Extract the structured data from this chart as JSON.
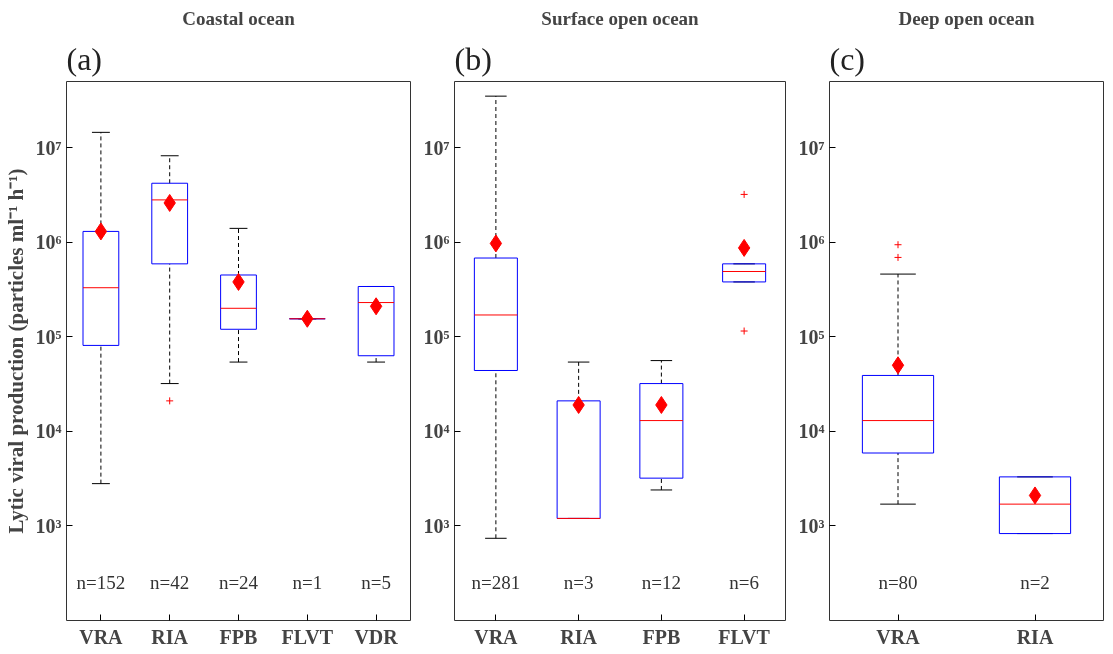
{
  "chart_data": [
    {
      "type": "box",
      "title": "Coastal ocean",
      "ylabel": "Lytic viral production (particles ml⁻¹ h⁻¹)",
      "categories": [
        "VRA",
        "RIA",
        "FPB",
        "FLVT",
        "VDR"
      ],
      "log": true,
      "grid": false,
      "ylim": [
        100,
        50000000
      ],
      "yticks": [
        {
          "value": 1000,
          "label": "10³"
        },
        {
          "value": 10000,
          "label": "10⁴"
        },
        {
          "value": 100000,
          "label": "10⁵"
        },
        {
          "value": 1000000,
          "label": "10⁶"
        },
        {
          "value": 10000000,
          "label": "10⁷"
        }
      ],
      "series": [
        {
          "color": "#0000ff",
          "boxes": [
            {
              "low": 2800,
              "q1": 81000,
              "median": 330000,
              "q3": 1300000,
              "high": 14500000
            },
            {
              "low": 32000,
              "q1": 590000,
              "median": 2800000,
              "q3": 4200000,
              "high": 8200000,
              "outliers": [
                21000
              ]
            },
            {
              "low": 54000,
              "q1": 120000,
              "median": 200000,
              "q3": 450000,
              "high": 1400000
            },
            {
              "low": 155000,
              "q1": 155000,
              "median": 155000,
              "q3": 155000,
              "high": 155000
            },
            {
              "low": 54000,
              "q1": 63000,
              "median": 230000,
              "q3": 340000,
              "high": 340000
            }
          ]
        },
        {
          "type": "scatter",
          "marker": "diamond",
          "color": "#ff0000",
          "x": [
            "VRA",
            "RIA",
            "FPB",
            "FLVT",
            "VDR"
          ],
          "values": [
            1300000,
            2600000,
            380000,
            155000,
            210000
          ]
        }
      ],
      "annotations": [
        "(a)",
        "n=152",
        "n=42",
        "n=24",
        "n=1",
        "n=5"
      ]
    },
    {
      "type": "box",
      "title": "Surface open ocean",
      "categories": [
        "VRA",
        "RIA",
        "FPB",
        "FLVT"
      ],
      "log": true,
      "grid": false,
      "ylim": [
        100,
        50000000
      ],
      "yticks": [
        {
          "value": 1000,
          "label": "10³"
        },
        {
          "value": 10000,
          "label": "10⁴"
        },
        {
          "value": 100000,
          "label": "10⁵"
        },
        {
          "value": 1000000,
          "label": "10⁶"
        },
        {
          "value": 10000000,
          "label": "10⁷"
        }
      ],
      "series": [
        {
          "color": "#0000ff",
          "boxes": [
            {
              "low": 740,
              "q1": 44000,
              "median": 170000,
              "q3": 680000,
              "high": 35000000
            },
            {
              "low": 1200,
              "q1": 1200,
              "median": 1200,
              "q3": 21000,
              "high": 54000
            },
            {
              "low": 2400,
              "q1": 3200,
              "median": 13000,
              "q3": 32000,
              "high": 56000
            },
            {
              "low": 380000,
              "q1": 380000,
              "median": 490000,
              "q3": 590000,
              "high": 590000,
              "outliers": [
                3200000,
                115000
              ]
            }
          ]
        },
        {
          "type": "scatter",
          "marker": "diamond",
          "color": "#ff0000",
          "x": [
            "VRA",
            "RIA",
            "FPB",
            "FLVT"
          ],
          "values": [
            970000,
            19000,
            19000,
            870000
          ]
        }
      ],
      "annotations": [
        "(b)",
        "n=281",
        "n=3",
        "n=12",
        "n=6"
      ]
    },
    {
      "type": "box",
      "title": "Deep open ocean",
      "categories": [
        "VRA",
        "RIA"
      ],
      "log": true,
      "grid": false,
      "ylim": [
        100,
        50000000
      ],
      "yticks": [
        {
          "value": 1000,
          "label": "10³"
        },
        {
          "value": 10000,
          "label": "10⁴"
        },
        {
          "value": 100000,
          "label": "10⁵"
        },
        {
          "value": 1000000,
          "label": "10⁶"
        },
        {
          "value": 10000000,
          "label": "10⁷"
        }
      ],
      "series": [
        {
          "color": "#0000ff",
          "boxes": [
            {
              "low": 1700,
              "q1": 5900,
              "median": 13000,
              "q3": 39000,
              "high": 460000,
              "outliers": [
                940000,
                690000
              ]
            },
            {
              "low": 830,
              "q1": 830,
              "median": 1700,
              "q3": 3300,
              "high": 3300
            }
          ]
        },
        {
          "type": "scatter",
          "marker": "diamond",
          "color": "#ff0000",
          "x": [
            "VRA",
            "RIA"
          ],
          "values": [
            50000,
            2100
          ]
        }
      ],
      "annotations": [
        "(c)",
        "n=80",
        "n=2"
      ]
    }
  ]
}
